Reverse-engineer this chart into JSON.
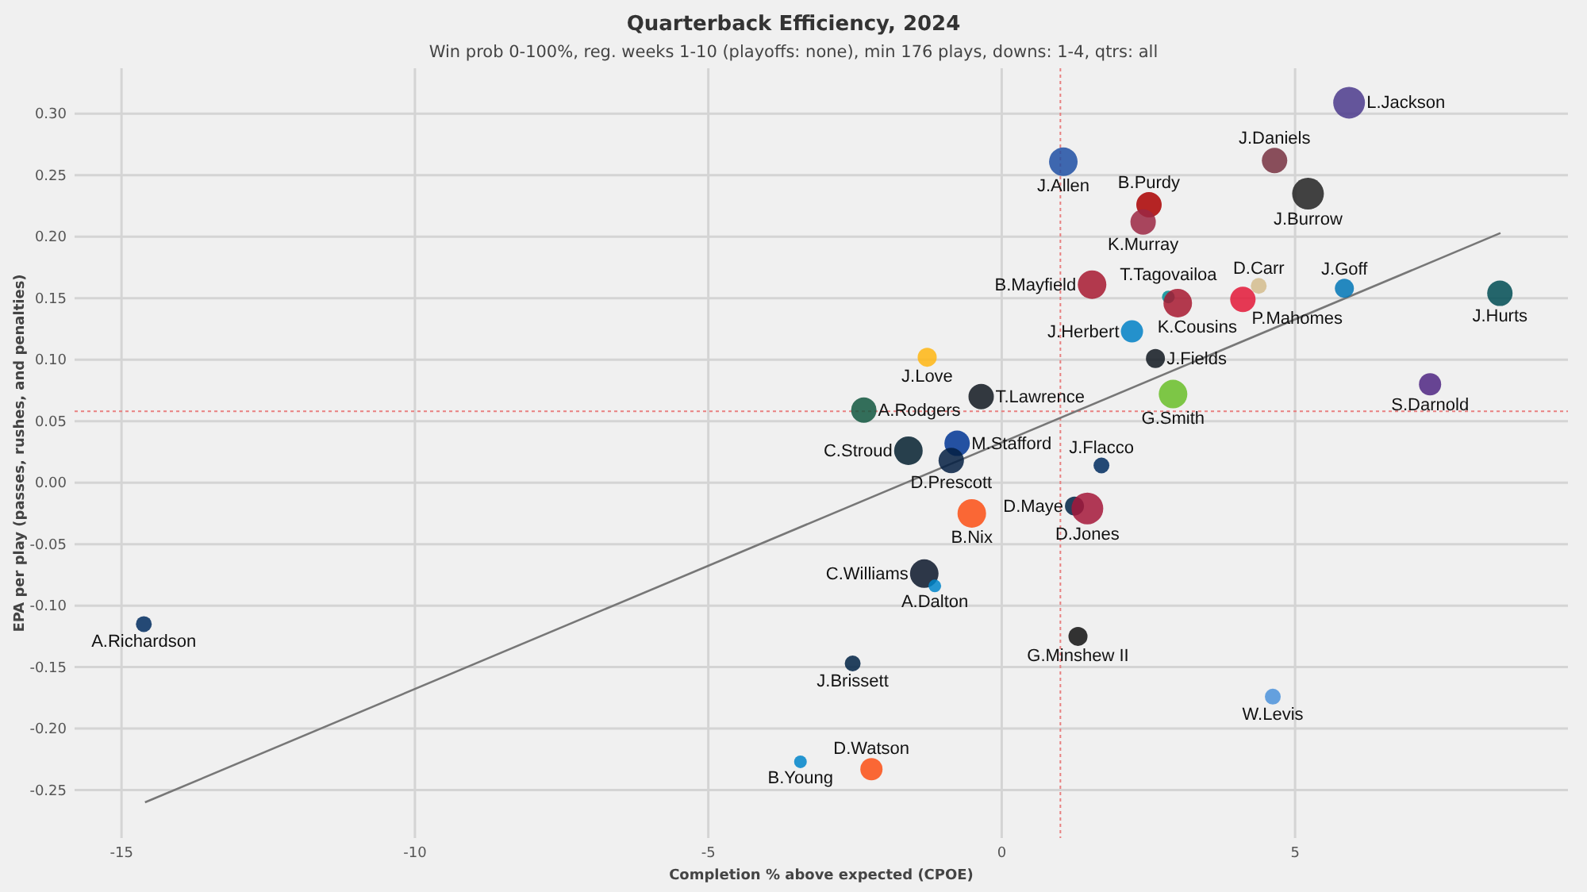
{
  "chart_data": {
    "type": "bubble",
    "title": "Quarterback Efficiency, 2024",
    "subtitle": "Win prob 0-100%, reg. weeks 1-10 (playoffs: none), min 176 plays, downs: 1-4, qtrs: all",
    "xlabel": "Completion % above expected (CPOE)",
    "ylabel": "EPA per play (passes, rushes, and penalties)",
    "xlim": [
      -15.8,
      9.65
    ],
    "ylim": [
      -0.289,
      0.337
    ],
    "xticks": [
      -15,
      -10,
      -5,
      0,
      5
    ],
    "yticks": [
      {
        "value": -0.25,
        "label": "-0.25"
      },
      {
        "value": -0.2,
        "label": "-0.20"
      },
      {
        "value": -0.15,
        "label": "-0.15"
      },
      {
        "value": -0.1,
        "label": "-0.10"
      },
      {
        "value": -0.05,
        "label": "-0.05"
      },
      {
        "value": 0,
        "label": "0.00"
      },
      {
        "value": 0.05,
        "label": "0.05"
      },
      {
        "value": 0.1,
        "label": "0.10"
      },
      {
        "value": 0.15,
        "label": "0.15"
      },
      {
        "value": 0.2,
        "label": "0.20"
      },
      {
        "value": 0.25,
        "label": "0.25"
      },
      {
        "value": 0.3,
        "label": "0.30"
      }
    ],
    "grid": true,
    "marker": "circle",
    "ref_lines": [
      {
        "axis": "x",
        "value": 1.0,
        "color": "#e88080",
        "line_style": "dotted"
      },
      {
        "axis": "y",
        "value": 0.058,
        "color": "#e88080",
        "line_style": "dotted"
      }
    ],
    "series": [
      {
        "type": "line",
        "color": "#777777",
        "line_style": "solid",
        "marker": "none",
        "x": [
          -14.6,
          8.5
        ],
        "values": [
          -0.26,
          0.203
        ]
      },
      {
        "name": "L.Jackson",
        "color": "#4b3a8c",
        "x": [
          5.92
        ],
        "values": [
          0.309
        ],
        "sizes": [
          1.0
        ]
      },
      {
        "name": "J.Daniels",
        "color": "#773141",
        "x": [
          4.65
        ],
        "values": [
          0.262
        ],
        "sizes": [
          0.64
        ]
      },
      {
        "name": "J.Burrow",
        "color": "#222222",
        "x": [
          5.22
        ],
        "values": [
          0.235
        ],
        "sizes": [
          1.0
        ]
      },
      {
        "name": "J.Allen",
        "color": "#1f4fa3",
        "x": [
          1.05
        ],
        "values": [
          0.261
        ],
        "sizes": [
          0.81
        ]
      },
      {
        "name": "B.Purdy",
        "color": "#aa0000",
        "x": [
          2.51
        ],
        "values": [
          0.226
        ],
        "sizes": [
          0.64
        ]
      },
      {
        "name": "K.Murray",
        "color": "#9b2743",
        "x": [
          2.41
        ],
        "values": [
          0.212
        ],
        "sizes": [
          0.64
        ]
      },
      {
        "name": "B.Mayfield",
        "color": "#a71930",
        "x": [
          1.54
        ],
        "values": [
          0.161
        ],
        "sizes": [
          0.81
        ]
      },
      {
        "name": "T.Tagovailoa",
        "color": "#008e97",
        "x": [
          2.84
        ],
        "values": [
          0.151
        ],
        "sizes": [
          0.16
        ]
      },
      {
        "name": "K.Cousins",
        "color": "#a71930",
        "x": [
          3.0
        ],
        "values": [
          0.146
        ],
        "sizes": [
          0.81
        ]
      },
      {
        "name": "D.Carr",
        "color": "#d3bc8d",
        "x": [
          4.38
        ],
        "values": [
          0.16
        ],
        "sizes": [
          0.25
        ]
      },
      {
        "name": "P.Mahomes",
        "color": "#e31837",
        "x": [
          4.11
        ],
        "values": [
          0.149
        ],
        "sizes": [
          0.64
        ]
      },
      {
        "name": "J.Goff",
        "color": "#0076b6",
        "x": [
          5.84
        ],
        "values": [
          0.158
        ],
        "sizes": [
          0.36
        ]
      },
      {
        "name": "J.Hurts",
        "color": "#004c54",
        "x": [
          8.49
        ],
        "values": [
          0.154
        ],
        "sizes": [
          0.64
        ]
      },
      {
        "name": "J.Herbert",
        "color": "#0080c6",
        "x": [
          2.22
        ],
        "values": [
          0.123
        ],
        "sizes": [
          0.49
        ]
      },
      {
        "name": "J.Fields",
        "color": "#101820",
        "x": [
          2.62
        ],
        "values": [
          0.101
        ],
        "sizes": [
          0.36
        ]
      },
      {
        "name": "G.Smith",
        "color": "#69be28",
        "x": [
          2.92
        ],
        "values": [
          0.072
        ],
        "sizes": [
          0.81
        ]
      },
      {
        "name": "S.Darnold",
        "color": "#4f2683",
        "x": [
          7.3
        ],
        "values": [
          0.08
        ],
        "sizes": [
          0.49
        ]
      },
      {
        "name": "J.Love",
        "color": "#ffb612",
        "x": [
          -1.27
        ],
        "values": [
          0.102
        ],
        "sizes": [
          0.36
        ]
      },
      {
        "name": "A.Rodgers",
        "color": "#125740",
        "x": [
          -2.35
        ],
        "values": [
          0.059
        ],
        "sizes": [
          0.64
        ]
      },
      {
        "name": "T.Lawrence",
        "color": "#101820",
        "x": [
          -0.35
        ],
        "values": [
          0.07
        ],
        "sizes": [
          0.64
        ]
      },
      {
        "name": "C.Stroud",
        "color": "#03202f",
        "x": [
          -1.59
        ],
        "values": [
          0.026
        ],
        "sizes": [
          0.81
        ]
      },
      {
        "name": "M.Stafford",
        "color": "#003594",
        "x": [
          -0.76
        ],
        "values": [
          0.032
        ],
        "sizes": [
          0.64
        ]
      },
      {
        "name": "D.Prescott",
        "color": "#041e42",
        "x": [
          -0.86
        ],
        "values": [
          0.018
        ],
        "sizes": [
          0.64
        ]
      },
      {
        "name": "J.Flacco",
        "color": "#002c5f",
        "x": [
          1.7
        ],
        "values": [
          0.014
        ],
        "sizes": [
          0.25
        ]
      },
      {
        "name": "D.Maye",
        "color": "#002244",
        "x": [
          1.24
        ],
        "values": [
          -0.019
        ],
        "sizes": [
          0.36
        ]
      },
      {
        "name": "D.Jones",
        "color": "#a5183a",
        "x": [
          1.46
        ],
        "values": [
          -0.021
        ],
        "sizes": [
          1.0
        ]
      },
      {
        "name": "B.Nix",
        "color": "#fb4f14",
        "x": [
          -0.51
        ],
        "values": [
          -0.025
        ],
        "sizes": [
          0.81
        ]
      },
      {
        "name": "C.Williams",
        "color": "#0b162a",
        "x": [
          -1.32
        ],
        "values": [
          -0.074
        ],
        "sizes": [
          0.81
        ]
      },
      {
        "name": "A.Dalton",
        "color": "#0085ca",
        "x": [
          -1.14
        ],
        "values": [
          -0.084
        ],
        "sizes": [
          0.16
        ]
      },
      {
        "name": "A.Richardson",
        "color": "#002c5f",
        "x": [
          -14.62
        ],
        "values": [
          -0.115
        ],
        "sizes": [
          0.25
        ]
      },
      {
        "name": "G.Minshew II",
        "color": "#111111",
        "x": [
          1.3
        ],
        "values": [
          -0.125
        ],
        "sizes": [
          0.36
        ]
      },
      {
        "name": "J.Brissett",
        "color": "#002244",
        "x": [
          -2.54
        ],
        "values": [
          -0.147
        ],
        "sizes": [
          0.25
        ]
      },
      {
        "name": "W.Levis",
        "color": "#4b92db",
        "x": [
          4.62
        ],
        "values": [
          -0.174
        ],
        "sizes": [
          0.25
        ]
      },
      {
        "name": "B.Young",
        "color": "#0085ca",
        "x": [
          -3.43
        ],
        "values": [
          -0.227
        ],
        "sizes": [
          0.16
        ]
      },
      {
        "name": "D.Watson",
        "color": "#fb4f14",
        "x": [
          -2.22
        ],
        "values": [
          -0.233
        ],
        "sizes": [
          0.49
        ]
      }
    ]
  }
}
